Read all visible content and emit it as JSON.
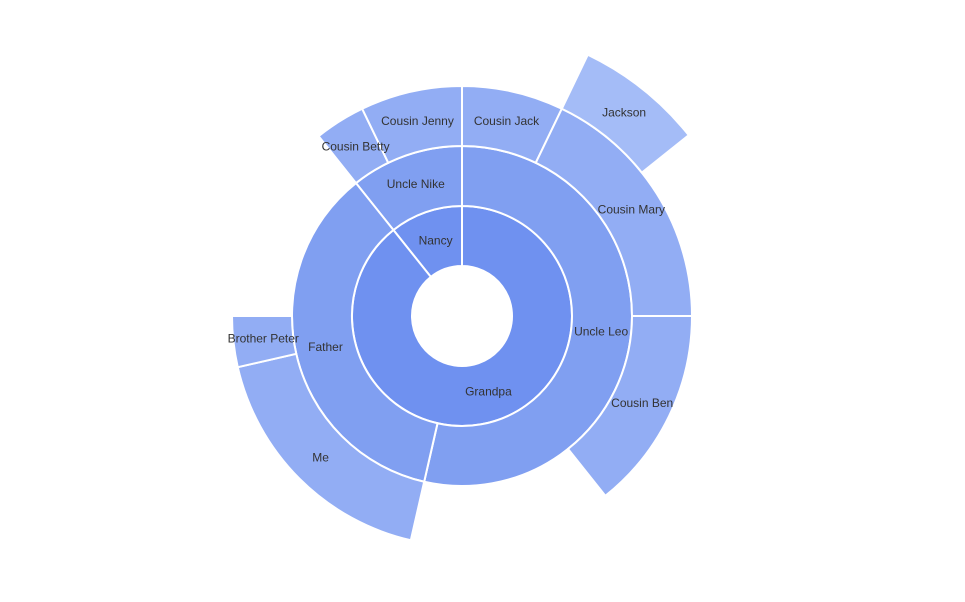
{
  "chart_data": {
    "type": "sunburst",
    "title": "",
    "colors": {
      "grandpa_ring1": "#6f91f0",
      "grandpa_ring2": "#809ff1",
      "grandpa_ring3": "#92adf4",
      "grandpa_ring4": "#a4bcf7",
      "nancy_ring1": "#00a876",
      "nancy_ring2": "#1fb283",
      "nancy_ring3": "#40be95",
      "separator": "#ffffff",
      "label": "#333333",
      "label_root": "#ffffff"
    },
    "nodes": [
      {
        "name": "Grandpa",
        "children": [
          {
            "name": "Uncle Leo",
            "value": 15,
            "children": [
              {
                "name": "Cousin Jack",
                "value": 2
              },
              {
                "name": "Cousin Mary",
                "value": 5,
                "children": [
                  {
                    "name": "Jackson",
                    "value": 2
                  }
                ]
              },
              {
                "name": "Cousin Ben",
                "value": 4
              }
            ]
          },
          {
            "name": "Father",
            "value": 10,
            "children": [
              {
                "name": "Me",
                "value": 5
              },
              {
                "name": "Brother Peter",
                "value": 1
              }
            ]
          }
        ]
      },
      {
        "name": "Nancy",
        "children": [
          {
            "name": "Uncle Nike",
            "children": [
              {
                "name": "Cousin Betty",
                "value": 1
              },
              {
                "name": "Cousin Jenny",
                "value": 2
              }
            ]
          }
        ]
      }
    ]
  }
}
